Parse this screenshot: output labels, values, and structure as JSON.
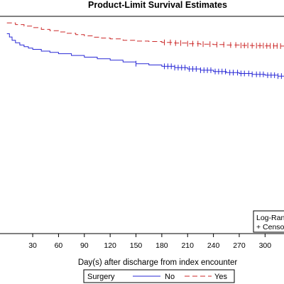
{
  "chart_data": {
    "type": "line",
    "title": "Product-Limit Survival Estimates",
    "xlabel": "Day(s) after discharge from index encounter",
    "ylabel": "",
    "xlim": [
      -8,
      322
    ],
    "ylim": [
      0,
      1
    ],
    "x_ticks": [
      30,
      60,
      90,
      120,
      150,
      180,
      210,
      240,
      270,
      300
    ],
    "grid": false,
    "legend": {
      "title": "Surgery",
      "position": "bottom-center",
      "entries": [
        {
          "label": "No",
          "color": "#2a2ad6",
          "dash": "solid"
        },
        {
          "label": "Yes",
          "color": "#cc2a2a",
          "dash": "dashed"
        }
      ]
    },
    "inset_legend": {
      "position": "bottom-right",
      "lines": [
        "Log-Ran",
        "+ Censo"
      ]
    },
    "series": [
      {
        "name": "No",
        "color": "#2a2ad6",
        "dash": "solid",
        "x": [
          0,
          3,
          6,
          10,
          15,
          20,
          25,
          30,
          40,
          50,
          60,
          75,
          90,
          105,
          120,
          135,
          150,
          165,
          180,
          195,
          210,
          225,
          240,
          255,
          270,
          285,
          300,
          315,
          322
        ],
        "y": [
          0.92,
          0.905,
          0.89,
          0.878,
          0.868,
          0.86,
          0.854,
          0.848,
          0.84,
          0.834,
          0.828,
          0.82,
          0.812,
          0.805,
          0.798,
          0.79,
          0.782,
          0.776,
          0.77,
          0.764,
          0.758,
          0.752,
          0.746,
          0.741,
          0.737,
          0.733,
          0.729,
          0.725,
          0.723
        ],
        "censored_x": [
          150,
          183,
          187,
          191,
          195,
          199,
          203,
          207,
          212,
          216,
          220,
          225,
          229,
          233,
          237,
          242,
          246,
          250,
          254,
          259,
          263,
          268,
          272,
          276,
          281,
          285,
          290,
          294,
          298,
          303,
          307,
          311,
          315,
          319
        ]
      },
      {
        "name": "Yes",
        "color": "#cc2a2a",
        "dash": "dashed",
        "x": [
          0,
          10,
          20,
          30,
          40,
          50,
          60,
          70,
          80,
          90,
          100,
          110,
          120,
          135,
          150,
          165,
          180,
          195,
          210,
          225,
          240,
          255,
          270,
          285,
          300,
          315,
          322
        ],
        "y": [
          0.97,
          0.962,
          0.955,
          0.948,
          0.94,
          0.934,
          0.928,
          0.922,
          0.916,
          0.91,
          0.904,
          0.9,
          0.896,
          0.89,
          0.886,
          0.884,
          0.88,
          0.877,
          0.874,
          0.872,
          0.87,
          0.868,
          0.866,
          0.865,
          0.864,
          0.863,
          0.863
        ],
        "censored_x": [
          183,
          190,
          196,
          202,
          210,
          216,
          222,
          228,
          236,
          244,
          252,
          260,
          266,
          272,
          276,
          280,
          285,
          290,
          294,
          298,
          302,
          306,
          310,
          314,
          318
        ]
      }
    ]
  }
}
